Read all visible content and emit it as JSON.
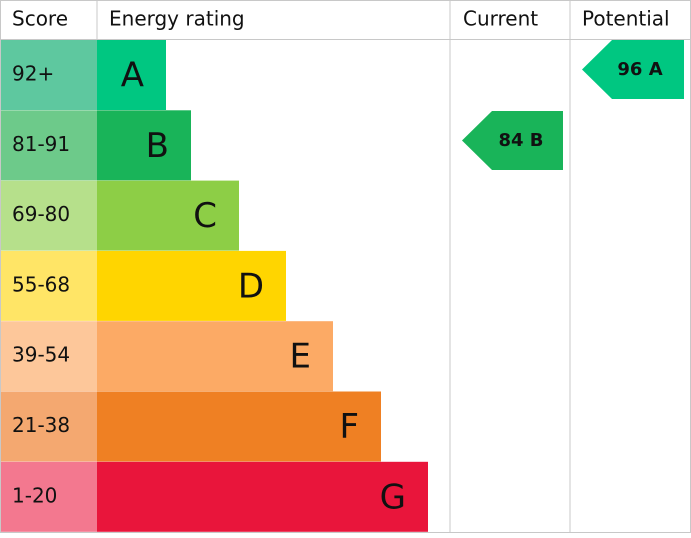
{
  "header": {
    "score": "Score",
    "energy_rating": "Energy rating",
    "current": "Current",
    "potential": "Potential"
  },
  "bands": [
    {
      "score": "92+",
      "letter": "A",
      "score_color": "#5ec89f",
      "color": "#00c781"
    },
    {
      "score": "81-91",
      "letter": "B",
      "score_color": "#6dca8a",
      "color": "#19b459"
    },
    {
      "score": "69-80",
      "letter": "C",
      "score_color": "#b6e08b",
      "color": "#8dce46"
    },
    {
      "score": "55-68",
      "letter": "D",
      "score_color": "#ffe566",
      "color": "#ffd500"
    },
    {
      "score": "39-54",
      "letter": "E",
      "score_color": "#fdc79a",
      "color": "#fcaa65"
    },
    {
      "score": "21-38",
      "letter": "F",
      "score_color": "#f4a870",
      "color": "#ef8023"
    },
    {
      "score": "1-20",
      "letter": "G",
      "score_color": "#f3788f",
      "color": "#e9153b"
    }
  ],
  "current": {
    "label": "84 B",
    "color": "#19b459"
  },
  "potential": {
    "label": "96 A",
    "color": "#00c781"
  }
}
